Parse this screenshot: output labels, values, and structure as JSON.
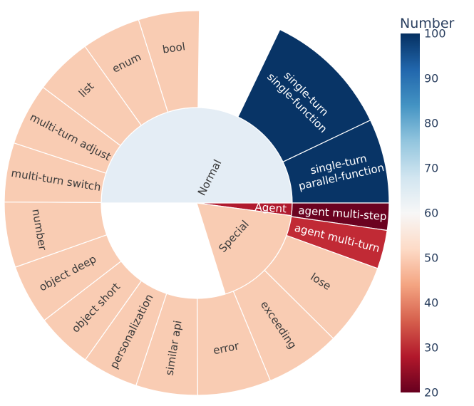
{
  "chart_data": {
    "type": "sunburst",
    "colorbar": {
      "title": "Number",
      "range": [
        20,
        100
      ],
      "ticks": [
        20,
        30,
        40,
        50,
        60,
        70,
        80,
        90,
        100
      ],
      "colorscale": [
        [
          0.0,
          "#67001f"
        ],
        [
          0.1,
          "#b2182b"
        ],
        [
          0.2,
          "#d6604d"
        ],
        [
          0.3,
          "#f4a582"
        ],
        [
          0.4,
          "#fddbc7"
        ],
        [
          0.5,
          "#f7f7f7"
        ],
        [
          0.6,
          "#d1e5f0"
        ],
        [
          0.7,
          "#92c5de"
        ],
        [
          0.8,
          "#4393c3"
        ],
        [
          0.9,
          "#2166ac"
        ],
        [
          1.0,
          "#053061"
        ]
      ]
    },
    "hierarchy": [
      {
        "name": "Normal",
        "color": "#e4edf5",
        "children": [
          {
            "name": "single-turn single-function",
            "lines": [
              "single-turn",
              "single-function"
            ],
            "value": 100,
            "color": "#083466"
          },
          {
            "name": "single-turn parallel-function",
            "lines": [
              "single-turn",
              "parallel-function"
            ],
            "value": 100,
            "color": "#083466"
          },
          {
            "name": "similar api",
            "value": 50,
            "color": "#f9ccb3"
          },
          {
            "name": "personalization",
            "value": 50,
            "color": "#f9ccb3"
          },
          {
            "name": "object short",
            "value": 50,
            "color": "#f9ccb3"
          },
          {
            "name": "object deep",
            "value": 50,
            "color": "#f9ccb3"
          },
          {
            "name": "number",
            "value": 50,
            "color": "#f9ccb3"
          },
          {
            "name": "multi-turn switch",
            "value": 50,
            "color": "#f9ccb3"
          },
          {
            "name": "multi-turn adjust",
            "value": 50,
            "color": "#f9ccb3"
          },
          {
            "name": "list",
            "value": 50,
            "color": "#f9ccb3"
          },
          {
            "name": "enum",
            "value": 50,
            "color": "#f9ccb3"
          },
          {
            "name": "bool",
            "value": 50,
            "color": "#f9ccb3"
          }
        ]
      },
      {
        "name": "Agent",
        "color": "#b01a2e",
        "children": [
          {
            "name": "agent multi-step",
            "value": 20,
            "color": "#6b0220"
          },
          {
            "name": "agent multi-turn",
            "value": 30,
            "color": "#c12a35"
          }
        ]
      },
      {
        "name": "Special",
        "color": "#f9ccb3",
        "children": [
          {
            "name": "lose",
            "value": 50,
            "color": "#f9ccb3"
          },
          {
            "name": "exceeding",
            "value": 50,
            "color": "#f9ccb3"
          },
          {
            "name": "error",
            "value": 50,
            "color": "#f9ccb3"
          }
        ]
      }
    ]
  }
}
